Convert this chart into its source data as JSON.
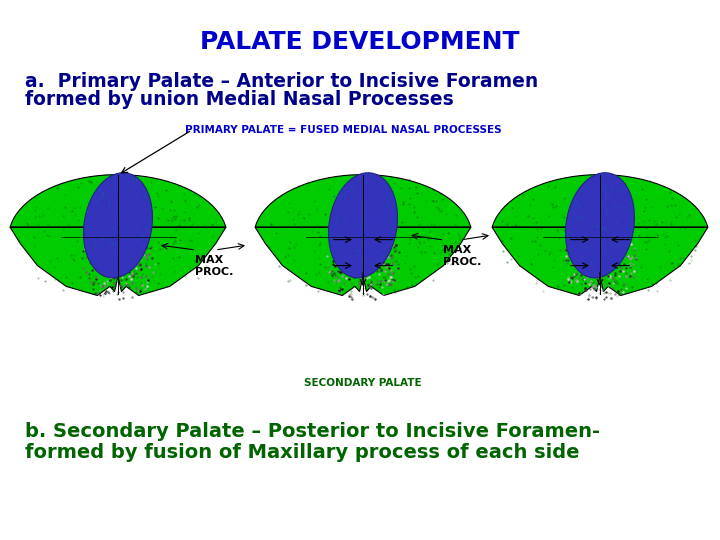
{
  "title": "PALATE DEVELOPMENT",
  "title_color": "#0000CC",
  "title_fontsize": 18,
  "subtitle_a_line1": "a.  Primary Palate – Anterior to Incisive Foramen",
  "subtitle_a_line2": "formed by union Medial Nasal Processes",
  "subtitle_a_color": "#00008B",
  "subtitle_a_fontsize": 13.5,
  "label_primary": "PRIMARY PALATE = FUSED MEDIAL NASAL PROCESSES",
  "label_primary_color": "#0000CC",
  "label_primary_fontsize": 7.5,
  "label_max1": "MAX\nPROC.",
  "label_max2": "MAX\nPROC.",
  "label_secondary": "SECONDARY PALATE",
  "label_secondary_color": "#006400",
  "label_secondary_fontsize": 7.5,
  "subtitle_b_line1": "b. Secondary Palate – Posterior to Incisive Foramen-",
  "subtitle_b_line2": "formed by fusion of Maxillary process of each side",
  "subtitle_b_color": "#006400",
  "subtitle_b_fontsize": 14,
  "background_color": "#FFFFFF",
  "green_color": "#00CC00",
  "blue_color": "#3333BB",
  "black_color": "#111111",
  "gray_color": "#AAAAAA"
}
